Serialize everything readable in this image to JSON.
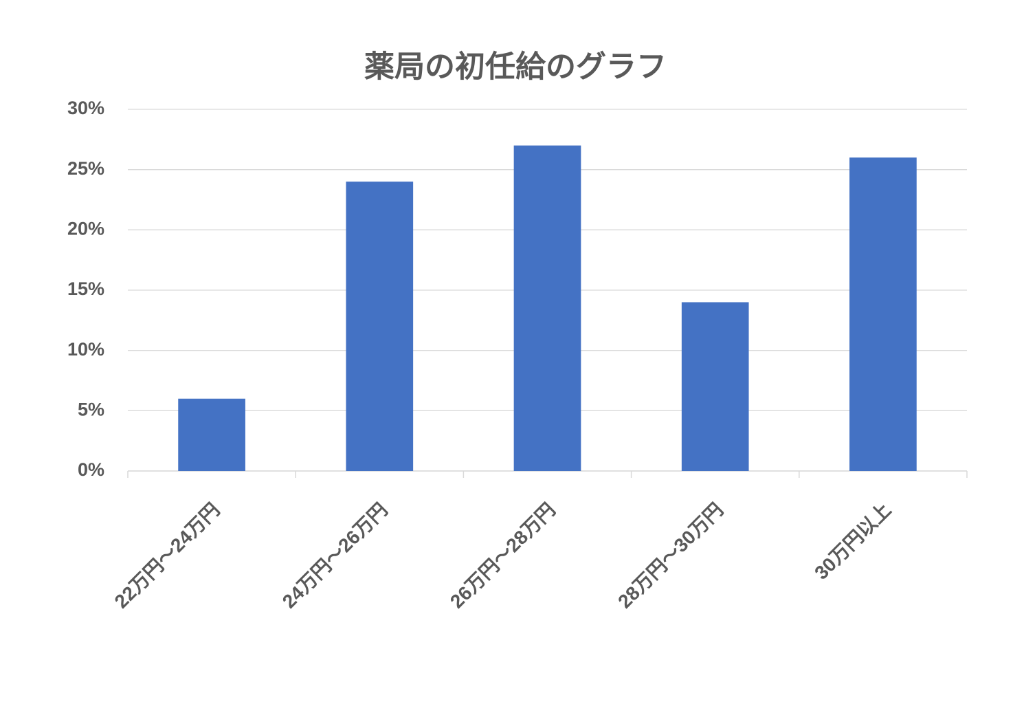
{
  "chart_data": {
    "type": "bar",
    "title": "薬局の初任給のグラフ",
    "categories": [
      "22万円～24万円",
      "24万円～26万円",
      "26万円～28万円",
      "28万円～30万円",
      "30万円以上"
    ],
    "values": [
      6,
      24,
      27,
      14,
      26
    ],
    "color": "#4472c4",
    "ylim": [
      0,
      30
    ],
    "yticks": [
      {
        "value": 0,
        "label": "0%"
      },
      {
        "value": 5,
        "label": "5%"
      },
      {
        "value": 10,
        "label": "10%"
      },
      {
        "value": 15,
        "label": "15%"
      },
      {
        "value": 20,
        "label": "20%"
      },
      {
        "value": 25,
        "label": "25%"
      },
      {
        "value": 30,
        "label": "30%"
      }
    ],
    "grid": true
  }
}
